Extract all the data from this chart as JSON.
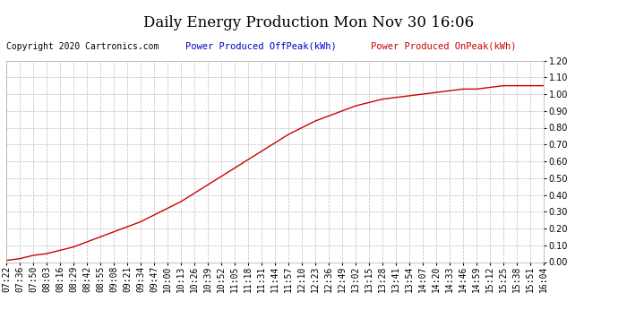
{
  "title": "Daily Energy Production Mon Nov 30 16:06",
  "copyright": "Copyright 2020 Cartronics.com",
  "legend_offpeak": "Power Produced OffPeak(kWh)",
  "legend_onpeak": "Power Produced OnPeak(kWh)",
  "offpeak_color": "#0000cc",
  "onpeak_color": "#cc0000",
  "line_color": "#cc0000",
  "background_color": "#ffffff",
  "grid_color": "#bbbbbb",
  "ylim": [
    0.0,
    1.2
  ],
  "yticks": [
    0.0,
    0.1,
    0.2,
    0.3,
    0.4,
    0.5,
    0.6,
    0.7,
    0.8,
    0.9,
    1.0,
    1.1,
    1.2
  ],
  "xtick_labels": [
    "07:22",
    "07:36",
    "07:50",
    "08:03",
    "08:16",
    "08:29",
    "08:42",
    "08:55",
    "09:08",
    "09:21",
    "09:34",
    "09:47",
    "10:00",
    "10:13",
    "10:26",
    "10:39",
    "10:52",
    "11:05",
    "11:18",
    "11:31",
    "11:44",
    "11:57",
    "12:10",
    "12:23",
    "12:36",
    "12:49",
    "13:02",
    "13:15",
    "13:28",
    "13:41",
    "13:54",
    "14:07",
    "14:20",
    "14:33",
    "14:46",
    "14:59",
    "15:12",
    "15:25",
    "15:38",
    "15:51",
    "16:04"
  ],
  "y_values": [
    0.01,
    0.02,
    0.04,
    0.05,
    0.07,
    0.09,
    0.12,
    0.15,
    0.18,
    0.21,
    0.24,
    0.28,
    0.32,
    0.36,
    0.41,
    0.46,
    0.51,
    0.56,
    0.61,
    0.66,
    0.71,
    0.76,
    0.8,
    0.84,
    0.87,
    0.9,
    0.93,
    0.95,
    0.97,
    0.98,
    0.99,
    1.0,
    1.01,
    1.02,
    1.03,
    1.03,
    1.04,
    1.05,
    1.05,
    1.05,
    1.05
  ],
  "title_fontsize": 12,
  "copyright_fontsize": 7,
  "legend_fontsize": 7.5,
  "tick_fontsize": 7
}
